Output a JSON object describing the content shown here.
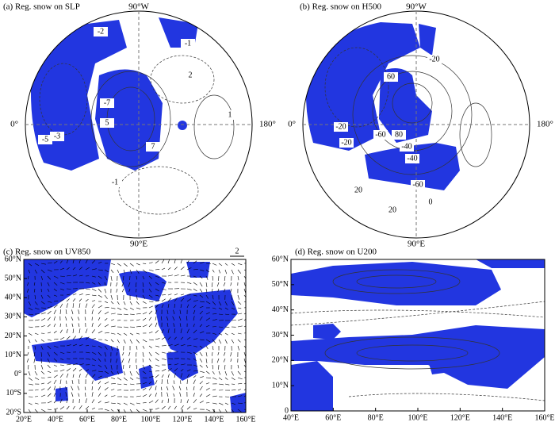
{
  "panels": [
    {
      "title": "(a) Reg. snow on SLP",
      "labels": {
        "top": "90°W",
        "left": "0°",
        "right": "180°",
        "bottom": "90°E"
      },
      "contour_labels": [
        "-2",
        "-1",
        "2",
        "1",
        "-1",
        "-3",
        "-5",
        "7",
        "-7",
        "5"
      ]
    },
    {
      "title": "(b) Reg. snow on H500",
      "labels": {
        "top": "90°W",
        "left": "0°",
        "right": "180°",
        "bottom": "90°E"
      },
      "contour_labels": [
        "-20",
        "60",
        "-60",
        "80",
        "-40",
        "-20",
        "-40",
        "-60",
        "20",
        "0",
        "20",
        "-20"
      ]
    },
    {
      "title": "(c) Reg. snow on UV850",
      "scale_label": "2",
      "y_labels": [
        "60°N",
        "50°N",
        "40°N",
        "30°N",
        "20°N",
        "10°N",
        "0°",
        "10°S",
        "20°S"
      ],
      "x_labels": [
        "20°E",
        "40°E",
        "60°E",
        "80°E",
        "100°E",
        "120°E",
        "140°E",
        "160°E"
      ]
    },
    {
      "title": "(d) Reg. snow on U200",
      "y_labels": [
        "60°N",
        "50°N",
        "40°N",
        "30°N",
        "20°N",
        "10°N",
        "0"
      ],
      "x_labels": [
        "40°E",
        "60°E",
        "80°E",
        "100°E",
        "120°E",
        "140°E",
        "160°E"
      ]
    }
  ]
}
